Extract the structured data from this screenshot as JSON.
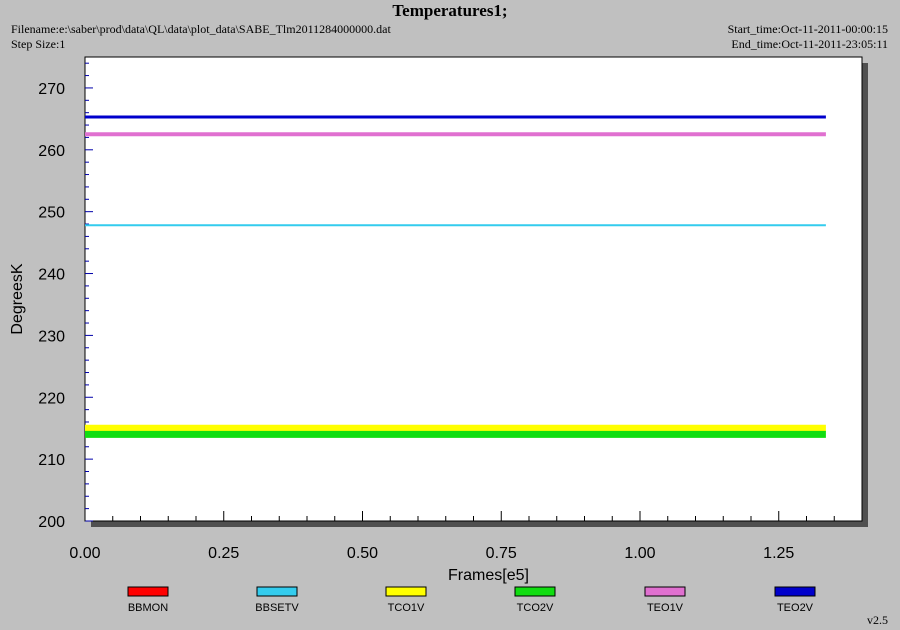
{
  "header": {
    "title": "Temperatures1;",
    "filename": "Filename:e:\\saber\\prod\\data\\QL\\data\\plot_data\\SABE_Tlm2011284000000.dat",
    "step_size": "Step Size:1",
    "start_time": "Start_time:Oct-11-2011-00:00:15",
    "end_time": "End_time:Oct-11-2011-23:05:11"
  },
  "version": "v2.5",
  "chart_data": {
    "type": "line",
    "title": "Temperatures1;",
    "xlabel": "Frames[e5]",
    "ylabel": "DegreesK",
    "xlim": [
      0,
      1.4
    ],
    "ylim": [
      200,
      275
    ],
    "x_ticks": [
      "0.00",
      "0.25",
      "0.50",
      "0.75",
      "1.00",
      "1.25"
    ],
    "x_tick_values": [
      0,
      0.25,
      0.5,
      0.75,
      1.0,
      1.25
    ],
    "y_ticks": [
      "200",
      "210",
      "220",
      "230",
      "240",
      "250",
      "260",
      "270"
    ],
    "y_tick_values": [
      200,
      210,
      220,
      230,
      240,
      250,
      260,
      270
    ],
    "x_range": [
      0,
      1.335
    ],
    "legend_position": "bottom",
    "series": [
      {
        "name": "BBMON",
        "color": "#ff0000",
        "values": []
      },
      {
        "name": "BBSETV",
        "color": "#33ccee",
        "values": [
          247.8,
          247.8
        ]
      },
      {
        "name": "TCO1V",
        "color": "#ffff00",
        "values": [
          215.0,
          215.0
        ]
      },
      {
        "name": "TCO2V",
        "color": "#11dd11",
        "values": [
          214.0,
          214.0
        ]
      },
      {
        "name": "TEO1V",
        "color": "#e070d0",
        "values": [
          262.5,
          262.5
        ]
      },
      {
        "name": "TEO2V",
        "color": "#0000cc",
        "values": [
          265.3,
          265.3
        ]
      }
    ]
  }
}
